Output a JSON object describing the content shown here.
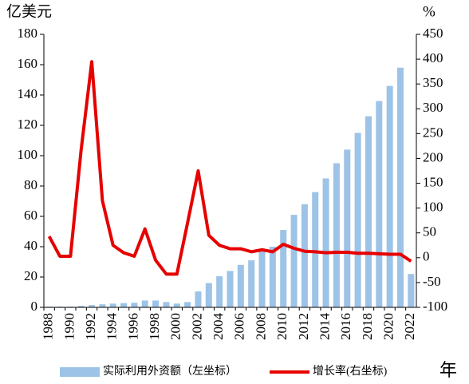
{
  "chart_data": {
    "type": "bar-line",
    "y_label": "亿美元",
    "y2_label": "%",
    "x_label": "年",
    "categories": [
      "1988",
      null,
      "1990",
      null,
      "1992",
      null,
      "1994",
      null,
      "1996",
      null,
      "1998",
      null,
      "2000",
      null,
      "2002",
      null,
      "2004",
      null,
      "2006",
      null,
      "2008",
      null,
      "2010",
      null,
      "2012",
      null,
      "2014",
      null,
      "2016",
      null,
      "2018",
      null,
      "2020",
      null,
      "2022"
    ],
    "series": [
      {
        "name": "实际利用外资额（左坐标）",
        "type": "bar",
        "color": "#9dc3e6",
        "axis": "y",
        "values": [
          0.5,
          0.5,
          0.5,
          1,
          1.5,
          2,
          2.5,
          2.8,
          3,
          4.5,
          4.5,
          3.5,
          2.5,
          3.5,
          10.5,
          16,
          20.5,
          24,
          28,
          31,
          37,
          40,
          51,
          61,
          68,
          76,
          85,
          95,
          104,
          115,
          126,
          136,
          146,
          158,
          22
        ]
      },
      {
        "name": "增长率(右坐标)",
        "type": "line",
        "color": "#e60000",
        "axis": "y2",
        "values": [
          43,
          3,
          3,
          217,
          395,
          115,
          25,
          10,
          3,
          58,
          -5,
          -33,
          -33,
          70,
          175,
          45,
          25,
          18,
          18,
          12,
          16,
          12,
          27,
          19,
          13,
          12,
          10,
          11,
          11,
          9,
          9,
          8,
          7,
          7,
          -7
        ]
      }
    ],
    "ylim": [
      0,
      180
    ],
    "yticks": [
      0,
      20,
      40,
      60,
      80,
      100,
      120,
      140,
      160,
      180
    ],
    "y2lim": [
      -100,
      450
    ],
    "y2ticks": [
      -100,
      -50,
      0,
      50,
      100,
      150,
      200,
      250,
      300,
      350,
      400,
      450
    ]
  }
}
